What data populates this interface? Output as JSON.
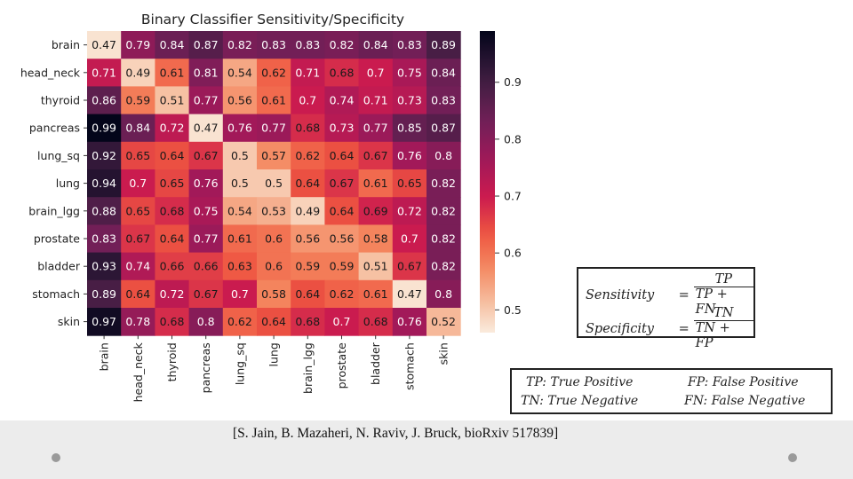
{
  "chart_data": {
    "type": "heatmap",
    "title": "Binary Classifier Sensitivity/Specificity",
    "rows": [
      "brain",
      "head_neck",
      "thyroid",
      "pancreas",
      "lung_sq",
      "lung",
      "brain_lgg",
      "prostate",
      "bladder",
      "stomach",
      "skin"
    ],
    "columns": [
      "brain",
      "head_neck",
      "thyroid",
      "pancreas",
      "lung_sq",
      "lung",
      "brain_lgg",
      "prostate",
      "bladder",
      "stomach",
      "skin"
    ],
    "values": [
      [
        0.47,
        0.79,
        0.84,
        0.87,
        0.82,
        0.83,
        0.83,
        0.82,
        0.84,
        0.83,
        0.89
      ],
      [
        0.71,
        0.49,
        0.61,
        0.81,
        0.54,
        0.62,
        0.71,
        0.68,
        0.7,
        0.75,
        0.84
      ],
      [
        0.86,
        0.59,
        0.51,
        0.77,
        0.56,
        0.61,
        0.7,
        0.74,
        0.71,
        0.73,
        0.83
      ],
      [
        0.99,
        0.84,
        0.72,
        0.47,
        0.76,
        0.77,
        0.68,
        0.73,
        0.77,
        0.85,
        0.87
      ],
      [
        0.92,
        0.65,
        0.64,
        0.67,
        0.5,
        0.57,
        0.62,
        0.64,
        0.67,
        0.76,
        0.8
      ],
      [
        0.94,
        0.7,
        0.65,
        0.76,
        0.5,
        0.5,
        0.64,
        0.67,
        0.61,
        0.65,
        0.82
      ],
      [
        0.88,
        0.65,
        0.68,
        0.75,
        0.54,
        0.53,
        0.49,
        0.64,
        0.69,
        0.72,
        0.82
      ],
      [
        0.83,
        0.67,
        0.64,
        0.77,
        0.61,
        0.6,
        0.56,
        0.56,
        0.58,
        0.7,
        0.82
      ],
      [
        0.93,
        0.74,
        0.66,
        0.66,
        0.63,
        0.6,
        0.59,
        0.59,
        0.51,
        0.67,
        0.82
      ],
      [
        0.89,
        0.64,
        0.72,
        0.67,
        0.7,
        0.58,
        0.64,
        0.62,
        0.61,
        0.47,
        0.8
      ],
      [
        0.97,
        0.78,
        0.68,
        0.8,
        0.62,
        0.64,
        0.68,
        0.7,
        0.68,
        0.76,
        0.52
      ]
    ],
    "colorbar": {
      "range": [
        0.46,
        0.99
      ],
      "ticks": [
        0.5,
        0.6,
        0.7,
        0.8,
        0.9
      ],
      "tick_labels": [
        "0.5",
        "0.6",
        "0.7",
        "0.8",
        "0.9"
      ]
    }
  },
  "formulas": {
    "sensitivity": {
      "label": "Sensitivity",
      "eq": "=",
      "num": "TP",
      "den": "TP + FN"
    },
    "specificity": {
      "label": "Specificity",
      "eq": "=",
      "num": "TN",
      "den": "TN + FP"
    }
  },
  "definitions": {
    "tp": "TP: True Positive",
    "fp": "FP: False Positive",
    "tn": "TN: True Negative",
    "fn": "FN: False Negative"
  },
  "citation": "[S. Jain, B. Mazaheri, N. Raviv, J. Bruck, bioRxiv 517839]"
}
